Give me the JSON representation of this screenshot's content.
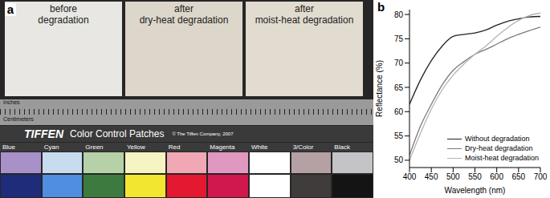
{
  "photo": {
    "panel_label": "a",
    "samples": [
      {
        "lines": [
          "before",
          "degradation"
        ],
        "color": "#e8e7e3"
      },
      {
        "lines": [
          "after",
          "dry-heat degradation"
        ],
        "color": "#ddd6ca"
      },
      {
        "lines": [
          "after",
          "moist-heat degradation"
        ],
        "color": "#e2dbcf"
      }
    ],
    "ruler": {
      "units": [
        "Inches",
        "Centimeters"
      ]
    },
    "color_chart": {
      "brand": "TIFFEN",
      "title": "Color Control Patches",
      "copyright": "© The Tiffen Company, 2007",
      "patches": [
        {
          "name": "Blue",
          "colors": [
            "#a890c8",
            "#1e2c7a"
          ]
        },
        {
          "name": "Cyan",
          "colors": [
            "#c8dcf0",
            "#4f8ee0"
          ]
        },
        {
          "name": "Green",
          "colors": [
            "#b6d0a8",
            "#3c7a40"
          ]
        },
        {
          "name": "Yellow",
          "colors": [
            "#f6f4c0",
            "#f2e630"
          ]
        },
        {
          "name": "Red",
          "colors": [
            "#f0a8b4",
            "#e41830"
          ]
        },
        {
          "name": "Magenta",
          "colors": [
            "#e098c0",
            "#d0184c"
          ]
        },
        {
          "name": "White",
          "colors": [
            "#ffffff",
            "#ffffff"
          ]
        },
        {
          "name": "3/Color",
          "colors": [
            "#b5a0a4",
            "#403c3c"
          ]
        },
        {
          "name": "Black",
          "colors": [
            "#c4c4c8",
            "#141414"
          ]
        }
      ]
    }
  },
  "chart_data": {
    "type": "line",
    "panel_label": "b",
    "x_label": "Wavelength (nm)",
    "y_label": "Reflectance (%)",
    "x": [
      400,
      425,
      450,
      475,
      500,
      525,
      550,
      575,
      600,
      625,
      650,
      675,
      700
    ],
    "series": [
      {
        "name": "Without degradation",
        "color": "#222222",
        "values": [
          61.5,
          66.5,
          70.5,
          73.5,
          75.5,
          75.9,
          76.2,
          76.8,
          77.8,
          78.6,
          79.1,
          79.5,
          79.6
        ]
      },
      {
        "name": "Dry-heat degradation",
        "color": "#7a7a7a",
        "values": [
          51,
          57,
          61.5,
          65.5,
          68.5,
          70.3,
          71.8,
          72.8,
          73.9,
          75,
          75.9,
          76.7,
          77.4
        ]
      },
      {
        "name": "Moist-heat degradation",
        "color": "#b4b4b4",
        "values": [
          50,
          55.5,
          60.5,
          64.5,
          67.5,
          69.8,
          71.8,
          73.5,
          75.5,
          77.3,
          78.8,
          79.8,
          80.3
        ]
      }
    ],
    "xlim": [
      400,
      700
    ],
    "xticks": [
      400,
      450,
      500,
      550,
      600,
      650,
      700
    ],
    "ylim": [
      48.5,
      81
    ],
    "yticks": [
      50,
      55,
      60,
      65,
      70,
      75,
      80
    ],
    "grid": false,
    "legend": "lower right"
  }
}
